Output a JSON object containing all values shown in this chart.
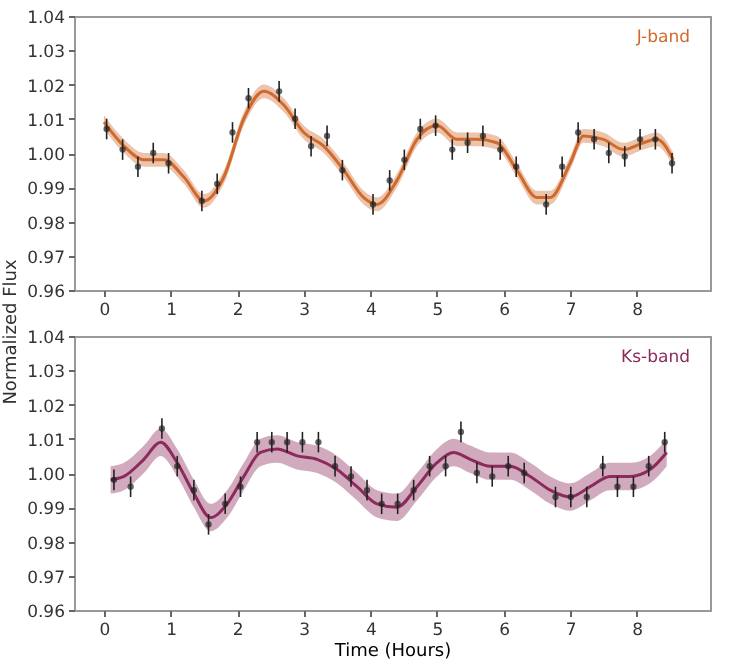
{
  "chart_data": [
    {
      "type": "line",
      "ylabel": "Normalized Flux",
      "xlim": [
        -0.45,
        9.1
      ],
      "ylim": [
        0.96,
        1.04
      ],
      "xticks": [
        0,
        1,
        2,
        3,
        4,
        5,
        6,
        7,
        8
      ],
      "yticks": [
        0.96,
        0.97,
        0.98,
        0.99,
        {
          "value": 1,
          "label": "1.00"
        },
        1.01,
        1.02,
        1.03,
        1.04
      ],
      "grid": false,
      "series": [
        {
          "type": "line",
          "name": "J-band",
          "color": "#d06a2c",
          "x": [
            0,
            0.3,
            0.6,
            0.9,
            1.2,
            1.5,
            1.8,
            2.1,
            2.4,
            2.7,
            3.0,
            3.3,
            3.6,
            3.9,
            4.1,
            4.4,
            4.7,
            5.0,
            5.3,
            5.6,
            5.9,
            6.2,
            6.5,
            6.7,
            7.0,
            7.2,
            7.5,
            7.8,
            8.1,
            8.3,
            8.55
          ],
          "values": [
            1.009,
            1.002,
            0.998,
            0.998,
            0.993,
            0.986,
            0.993,
            1.01,
            1.018,
            1.014,
            1.006,
            1.002,
            0.995,
            0.987,
            0.985,
            0.992,
            1.004,
            1.008,
            1.004,
            1.004,
            1.003,
            0.995,
            0.987,
            0.987,
            0.997,
            1.005,
            1.004,
            1.001,
            1.003,
            1.004,
            0.998
          ],
          "lower": [
            1.007,
            1.0,
            0.996,
            0.996,
            0.991,
            0.984,
            0.991,
            1.008,
            1.016,
            1.012,
            1.004,
            1.0,
            0.993,
            0.985,
            0.983,
            0.99,
            1.002,
            1.006,
            1.002,
            1.002,
            1.001,
            0.993,
            0.985,
            0.985,
            0.995,
            1.003,
            1.002,
            0.999,
            1.001,
            1.002,
            0.996
          ],
          "upper": [
            1.011,
            1.004,
            1.0,
            1.0,
            0.995,
            0.988,
            0.995,
            1.012,
            1.02,
            1.016,
            1.008,
            1.004,
            0.997,
            0.989,
            0.987,
            0.994,
            1.006,
            1.01,
            1.006,
            1.006,
            1.005,
            0.997,
            0.989,
            0.989,
            0.999,
            1.007,
            1.006,
            1.003,
            1.005,
            1.006,
            1.0
          ]
        },
        {
          "type": "scatter",
          "color": "#222222",
          "marker": "circle",
          "x": [
            0.04,
            0.28,
            0.51,
            0.74,
            0.97,
            1.47,
            1.7,
            1.93,
            2.17,
            2.63,
            2.87,
            3.11,
            3.35,
            3.58,
            4.04,
            4.29,
            4.51,
            4.75,
            4.98,
            5.23,
            5.46,
            5.69,
            5.95,
            6.19,
            6.64,
            6.88,
            7.12,
            7.36,
            7.58,
            7.82,
            8.05,
            8.28,
            8.53
          ],
          "values": [
            1.007,
            1.001,
            0.996,
            1.0,
            0.997,
            0.986,
            0.991,
            1.006,
            1.016,
            1.018,
            1.01,
            1.002,
            1.005,
            0.995,
            0.985,
            0.992,
            0.998,
            1.007,
            1.008,
            1.001,
            1.003,
            1.005,
            1.001,
            0.996,
            0.985,
            0.996,
            1.006,
            1.004,
            1.0,
            0.999,
            1.004,
            1.004,
            0.997
          ],
          "errors": [
            0.003,
            0.003,
            0.003,
            0.003,
            0.003,
            0.003,
            0.003,
            0.003,
            0.003,
            0.003,
            0.003,
            0.003,
            0.003,
            0.003,
            0.003,
            0.003,
            0.003,
            0.003,
            0.003,
            0.003,
            0.003,
            0.003,
            0.003,
            0.003,
            0.003,
            0.003,
            0.003,
            0.003,
            0.003,
            0.003,
            0.003,
            0.003,
            0.003
          ]
        }
      ]
    },
    {
      "type": "line",
      "xlabel": "Time (Hours)",
      "xlim": [
        -0.45,
        9.1
      ],
      "ylim": [
        0.96,
        1.04
      ],
      "xticks": [
        0,
        1,
        2,
        3,
        4,
        5,
        6,
        7,
        8
      ],
      "yticks": [
        0.96,
        0.97,
        0.98,
        0.99,
        {
          "value": 1,
          "label": "1.00"
        },
        1.01,
        1.02,
        1.03,
        1.04
      ],
      "grid": false,
      "series": [
        {
          "type": "line",
          "name": "Ks-band",
          "color": "#8c2a5c",
          "x": [
            0.1,
            0.3,
            0.6,
            0.85,
            1.1,
            1.35,
            1.6,
            1.85,
            2.1,
            2.35,
            2.6,
            2.9,
            3.2,
            3.5,
            3.8,
            4.1,
            4.4,
            4.7,
            5.0,
            5.25,
            5.5,
            5.8,
            6.1,
            6.4,
            6.7,
            7.0,
            7.3,
            7.6,
            7.9,
            8.2,
            8.45
          ],
          "values": [
            0.998,
            0.999,
            1.004,
            1.009,
            1.003,
            0.994,
            0.987,
            0.991,
            0.999,
            1.006,
            1.007,
            1.005,
            1.004,
            1.001,
            0.996,
            0.991,
            0.99,
            0.996,
            1.003,
            1.006,
            1.004,
            1.002,
            1.002,
            0.999,
            0.995,
            0.993,
            0.996,
            0.999,
            0.999,
            1.001,
            1.006
          ],
          "lower": [
            0.994,
            0.995,
            1.0,
            1.005,
            0.999,
            0.99,
            0.983,
            0.987,
            0.995,
            1.002,
            1.003,
            1.001,
            1.0,
            0.997,
            0.992,
            0.987,
            0.986,
            0.992,
            0.999,
            1.002,
            1.0,
            0.998,
            0.998,
            0.995,
            0.991,
            0.989,
            0.992,
            0.995,
            0.995,
            0.997,
            1.002
          ],
          "upper": [
            1.002,
            1.003,
            1.008,
            1.013,
            1.007,
            0.998,
            0.991,
            0.995,
            1.003,
            1.01,
            1.011,
            1.009,
            1.008,
            1.005,
            1.0,
            0.995,
            0.994,
            1.0,
            1.007,
            1.01,
            1.008,
            1.006,
            1.006,
            1.003,
            0.999,
            0.997,
            1.0,
            1.003,
            1.003,
            1.005,
            1.01
          ]
        },
        {
          "type": "scatter",
          "color": "#222222",
          "marker": "circle",
          "x": [
            0.15,
            0.4,
            0.87,
            1.1,
            1.35,
            1.57,
            1.82,
            2.05,
            2.3,
            2.52,
            2.75,
            2.98,
            3.22,
            3.47,
            3.71,
            3.95,
            4.17,
            4.41,
            4.65,
            4.89,
            5.13,
            5.36,
            5.6,
            5.83,
            6.07,
            6.31,
            6.78,
            7.01,
            7.25,
            7.49,
            7.71,
            7.95,
            8.18,
            8.42
          ],
          "values": [
            0.998,
            0.996,
            1.013,
            1.002,
            0.995,
            0.985,
            0.991,
            0.996,
            1.009,
            1.009,
            1.009,
            1.009,
            1.009,
            1.002,
            0.999,
            0.995,
            0.991,
            0.991,
            0.995,
            1.002,
            1.002,
            1.012,
            1.0,
            0.999,
            1.002,
            1.0,
            0.993,
            0.993,
            0.993,
            1.002,
            0.996,
            0.996,
            1.002,
            1.009
          ],
          "errors": [
            0.003,
            0.003,
            0.003,
            0.003,
            0.003,
            0.003,
            0.003,
            0.003,
            0.003,
            0.003,
            0.003,
            0.003,
            0.003,
            0.003,
            0.003,
            0.003,
            0.003,
            0.003,
            0.003,
            0.003,
            0.003,
            0.003,
            0.003,
            0.003,
            0.003,
            0.003,
            0.003,
            0.003,
            0.003,
            0.003,
            0.003,
            0.003,
            0.003,
            0.003
          ]
        }
      ]
    }
  ]
}
